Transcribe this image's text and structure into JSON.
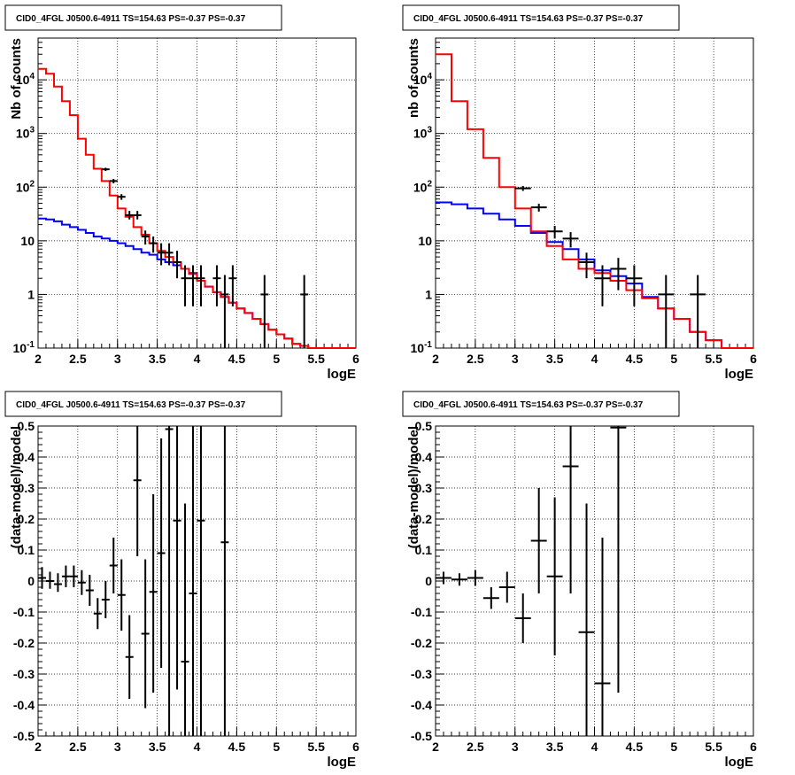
{
  "title": "CID0_4FGL J0500.6-4911 TS=154.63 PS=-0.37 PS=-0.37",
  "colors": {
    "model_total": "#ff0000",
    "model_bkg": "#0000ff",
    "data": "#000000"
  },
  "chart_data": [
    {
      "type": "line",
      "title": "CID0_4FGL J0500.6-4911 TS=154.63 PS=-0.37 PS=-0.37",
      "xlabel": "logE",
      "ylabel": "Nb of counts",
      "log_y": true,
      "xlim": [
        2,
        6
      ],
      "ylim": [
        0.1,
        60000
      ],
      "x_ticks": [
        "2",
        "2.5",
        "3",
        "3.5",
        "4",
        "4.5",
        "5",
        "5.5",
        "6"
      ],
      "y_ticks": [
        "10^-1",
        "1",
        "10",
        "10^2",
        "10^3",
        "10^4"
      ],
      "grid": true,
      "series": [
        {
          "edges": [
            2.0,
            2.1,
            2.2,
            2.3,
            2.4,
            2.5,
            2.6,
            2.7,
            2.8,
            2.9,
            3.0,
            3.1,
            3.2,
            3.3,
            3.4,
            3.5,
            3.6,
            3.7,
            3.8,
            3.9,
            4.0,
            4.1,
            4.2,
            4.3,
            4.4,
            4.5,
            4.6,
            4.7,
            4.8,
            4.9,
            5.0,
            5.1,
            5.2,
            5.3,
            5.4,
            5.5,
            5.6,
            5.7,
            5.8,
            5.9,
            6.0
          ],
          "values": [
            16000,
            13000,
            7500,
            4000,
            2200,
            800,
            400,
            220,
            130,
            70,
            40,
            28,
            18,
            13,
            9,
            6.5,
            5,
            4,
            3,
            2.4,
            1.8,
            1.4,
            1.1,
            0.9,
            0.7,
            0.55,
            0.45,
            0.35,
            0.28,
            0.22,
            0.18,
            0.15,
            0.12,
            0.11,
            0.1,
            0.1,
            0.1,
            0.1,
            0.1,
            0.1
          ]
        },
        {
          "edges": [
            2.0,
            2.1,
            2.2,
            2.3,
            2.4,
            2.5,
            2.6,
            2.7,
            2.8,
            2.9,
            3.0,
            3.1,
            3.2,
            3.3,
            3.4,
            3.5,
            3.6,
            3.7,
            3.8,
            3.9,
            4.0,
            4.1,
            4.2,
            4.3,
            4.4,
            4.5,
            4.6,
            4.7,
            4.8,
            4.9,
            5.0,
            5.1,
            5.2,
            5.3,
            5.4,
            5.5,
            5.6,
            5.7,
            5.8,
            5.9,
            6.0
          ],
          "values": [
            26,
            25,
            23,
            20,
            18,
            16,
            14,
            12,
            11,
            10,
            9,
            8,
            7,
            6,
            5.5,
            4.5,
            4,
            3.5,
            3,
            2.5,
            1.8,
            1.4,
            1.1,
            0.9,
            0.7,
            0.55,
            0.45,
            0.35,
            0.28,
            0.22,
            0.18,
            0.15,
            0.12,
            0.11,
            0.1,
            0.1,
            0.1,
            0.1,
            0.1,
            0.1
          ]
        }
      ],
      "points": [
        {
          "x": 2.85,
          "y": 215,
          "xerr": 0.05,
          "ylo": 200,
          "yhi": 230
        },
        {
          "x": 2.95,
          "y": 130,
          "xerr": 0.05,
          "ylo": 118,
          "yhi": 142
        },
        {
          "x": 3.05,
          "y": 66,
          "xerr": 0.05,
          "ylo": 58,
          "yhi": 74
        },
        {
          "x": 3.15,
          "y": 30,
          "xerr": 0.05,
          "ylo": 25,
          "yhi": 36
        },
        {
          "x": 3.25,
          "y": 30,
          "xerr": 0.05,
          "ylo": 25,
          "yhi": 36
        },
        {
          "x": 3.35,
          "y": 12,
          "xerr": 0.05,
          "ylo": 8.5,
          "yhi": 15.5
        },
        {
          "x": 3.45,
          "y": 9,
          "xerr": 0.05,
          "ylo": 6,
          "yhi": 12
        },
        {
          "x": 3.55,
          "y": 6,
          "xerr": 0.05,
          "ylo": 3.5,
          "yhi": 9
        },
        {
          "x": 3.65,
          "y": 6,
          "xerr": 0.05,
          "ylo": 3.5,
          "yhi": 9
        },
        {
          "x": 3.75,
          "y": 4,
          "xerr": 0.05,
          "ylo": 2,
          "yhi": 6.5
        },
        {
          "x": 3.85,
          "y": 2,
          "xerr": 0.05,
          "ylo": 0.6,
          "yhi": 3.5
        },
        {
          "x": 3.95,
          "y": 2,
          "xerr": 0.05,
          "ylo": 0.6,
          "yhi": 3.5
        },
        {
          "x": 4.05,
          "y": 2,
          "xerr": 0.05,
          "ylo": 0.6,
          "yhi": 3.5
        },
        {
          "x": 4.25,
          "y": 2,
          "xerr": 0.05,
          "ylo": 0.6,
          "yhi": 3.5
        },
        {
          "x": 4.35,
          "y": 1,
          "xerr": 0.05,
          "ylo": 0.1,
          "yhi": 2.3
        },
        {
          "x": 4.45,
          "y": 2,
          "xerr": 0.05,
          "ylo": 0.6,
          "yhi": 3.5
        },
        {
          "x": 4.85,
          "y": 1,
          "xerr": 0.05,
          "ylo": 0.1,
          "yhi": 2.3
        },
        {
          "x": 5.35,
          "y": 1,
          "xerr": 0.05,
          "ylo": 0.1,
          "yhi": 2.3
        }
      ]
    },
    {
      "type": "line",
      "title": "CID0_4FGL J0500.6-4911 TS=154.63 PS=-0.37 PS=-0.37",
      "xlabel": "logE",
      "ylabel": "nb of counts",
      "log_y": true,
      "xlim": [
        2,
        6
      ],
      "ylim": [
        0.1,
        60000
      ],
      "x_ticks": [
        "2",
        "2.5",
        "3",
        "3.5",
        "4",
        "4.5",
        "5",
        "5.5",
        "6"
      ],
      "y_ticks": [
        "10^-1",
        "1",
        "10",
        "10^2",
        "10^3",
        "10^4"
      ],
      "grid": true,
      "series": [
        {
          "edges": [
            2.0,
            2.2,
            2.4,
            2.6,
            2.8,
            3.0,
            3.2,
            3.4,
            3.6,
            3.8,
            4.0,
            4.2,
            4.4,
            4.6,
            4.8,
            5.0,
            5.2,
            5.4,
            5.6,
            5.8,
            6.0
          ],
          "values": [
            30000,
            4000,
            1200,
            350,
            100,
            40,
            15,
            8,
            4.5,
            3,
            2.5,
            1.8,
            1.2,
            0.85,
            0.55,
            0.35,
            0.2,
            0.14,
            0.1,
            0.1
          ]
        },
        {
          "edges": [
            2.0,
            2.2,
            2.4,
            2.6,
            2.8,
            3.0,
            3.2,
            3.4,
            3.6,
            3.8,
            4.0,
            4.2,
            4.4,
            4.6,
            4.8,
            5.0,
            5.2,
            5.4,
            5.6,
            5.8,
            6.0
          ],
          "values": [
            52,
            48,
            40,
            32,
            25,
            19,
            14,
            9.5,
            7,
            4.5,
            2.8,
            2.2,
            1.6,
            0.9,
            0.55,
            0.35,
            0.2,
            0.14,
            0.1,
            0.1
          ]
        }
      ],
      "points": [
        {
          "x": 3.1,
          "y": 95,
          "xerr": 0.1,
          "ylo": 85,
          "yhi": 105
        },
        {
          "x": 3.3,
          "y": 42,
          "xerr": 0.1,
          "ylo": 35,
          "yhi": 49
        },
        {
          "x": 3.5,
          "y": 15,
          "xerr": 0.1,
          "ylo": 11,
          "yhi": 19
        },
        {
          "x": 3.7,
          "y": 11,
          "xerr": 0.1,
          "ylo": 7.5,
          "yhi": 14.5
        },
        {
          "x": 3.9,
          "y": 4,
          "xerr": 0.1,
          "ylo": 2,
          "yhi": 6
        },
        {
          "x": 4.1,
          "y": 2,
          "xerr": 0.1,
          "ylo": 0.6,
          "yhi": 3.5
        },
        {
          "x": 4.3,
          "y": 3,
          "xerr": 0.1,
          "ylo": 1.2,
          "yhi": 4.8
        },
        {
          "x": 4.5,
          "y": 2,
          "xerr": 0.1,
          "ylo": 0.6,
          "yhi": 3.5
        },
        {
          "x": 4.9,
          "y": 1,
          "xerr": 0.1,
          "ylo": 0.1,
          "yhi": 2.3
        },
        {
          "x": 5.3,
          "y": 1,
          "xerr": 0.1,
          "ylo": 0.1,
          "yhi": 2.3
        }
      ]
    },
    {
      "type": "scatter",
      "title": "CID0_4FGL J0500.6-4911 TS=154.63 PS=-0.37 PS=-0.37",
      "xlabel": "logE",
      "ylabel": "(data-model)/model",
      "log_y": false,
      "xlim": [
        2,
        6
      ],
      "ylim": [
        -0.5,
        0.5
      ],
      "x_ticks": [
        "2",
        "2.5",
        "3",
        "3.5",
        "4",
        "4.5",
        "5",
        "5.5",
        "6"
      ],
      "y_ticks": [
        "-0.5",
        "-0.4",
        "-0.3",
        "-0.2",
        "-0.1",
        "0",
        "0.1",
        "0.2",
        "0.3",
        "0.4",
        "0.5"
      ],
      "grid": true,
      "series": [],
      "points": [
        {
          "x": 2.05,
          "y": 0.01,
          "xerr": 0.05,
          "ylo": -0.025,
          "yhi": 0.045
        },
        {
          "x": 2.15,
          "y": 0.0,
          "xerr": 0.05,
          "ylo": -0.025,
          "yhi": 0.03
        },
        {
          "x": 2.25,
          "y": -0.01,
          "xerr": 0.05,
          "ylo": -0.035,
          "yhi": 0.025
        },
        {
          "x": 2.35,
          "y": 0.015,
          "xerr": 0.05,
          "ylo": -0.02,
          "yhi": 0.05
        },
        {
          "x": 2.45,
          "y": 0.015,
          "xerr": 0.05,
          "ylo": -0.02,
          "yhi": 0.05
        },
        {
          "x": 2.55,
          "y": -0.005,
          "xerr": 0.05,
          "ylo": -0.045,
          "yhi": 0.035
        },
        {
          "x": 2.65,
          "y": -0.03,
          "xerr": 0.05,
          "ylo": -0.08,
          "yhi": 0.02
        },
        {
          "x": 2.75,
          "y": -0.105,
          "xerr": 0.05,
          "ylo": -0.155,
          "yhi": -0.055
        },
        {
          "x": 2.85,
          "y": -0.06,
          "xerr": 0.05,
          "ylo": -0.12,
          "yhi": 0.0
        },
        {
          "x": 2.95,
          "y": 0.05,
          "xerr": 0.05,
          "ylo": -0.04,
          "yhi": 0.14
        },
        {
          "x": 3.05,
          "y": -0.045,
          "xerr": 0.05,
          "ylo": -0.16,
          "yhi": 0.07
        },
        {
          "x": 3.15,
          "y": -0.245,
          "xerr": 0.05,
          "ylo": -0.38,
          "yhi": -0.11
        },
        {
          "x": 3.25,
          "y": 0.325,
          "xerr": 0.05,
          "ylo": 0.08,
          "yhi": 0.57
        },
        {
          "x": 3.35,
          "y": -0.17,
          "xerr": 0.05,
          "ylo": -0.41,
          "yhi": 0.07
        },
        {
          "x": 3.45,
          "y": -0.035,
          "xerr": 0.05,
          "ylo": -0.36,
          "yhi": 0.28
        },
        {
          "x": 3.55,
          "y": 0.09,
          "xerr": 0.05,
          "ylo": -0.28,
          "yhi": 0.46
        },
        {
          "x": 3.65,
          "y": 0.49,
          "xerr": 0.05,
          "ylo": -0.5,
          "yhi": 1.2
        },
        {
          "x": 3.75,
          "y": 0.195,
          "xerr": 0.05,
          "ylo": -0.35,
          "yhi": 0.74
        },
        {
          "x": 3.85,
          "y": -0.26,
          "xerr": 0.05,
          "ylo": -0.5,
          "yhi": 0.25
        },
        {
          "x": 3.95,
          "y": -0.04,
          "xerr": 0.05,
          "ylo": -0.5,
          "yhi": 0.65
        },
        {
          "x": 4.05,
          "y": 0.195,
          "xerr": 0.05,
          "ylo": -0.5,
          "yhi": 0.9
        },
        {
          "x": 4.35,
          "y": 0.125,
          "xerr": 0.05,
          "ylo": -0.5,
          "yhi": 0.9
        }
      ]
    },
    {
      "type": "scatter",
      "title": "CID0_4FGL J0500.6-4911 TS=154.63 PS=-0.37 PS=-0.37",
      "xlabel": "logE",
      "ylabel": "(data-model)/model",
      "log_y": false,
      "xlim": [
        2,
        6
      ],
      "ylim": [
        -0.5,
        0.5
      ],
      "x_ticks": [
        "2",
        "2.5",
        "3",
        "3.5",
        "4",
        "4.5",
        "5",
        "5.5",
        "6"
      ],
      "y_ticks": [
        "-0.5",
        "-0.4",
        "-0.3",
        "-0.2",
        "-0.1",
        "0",
        "0.1",
        "0.2",
        "0.3",
        "0.4",
        "0.5"
      ],
      "grid": true,
      "series": [],
      "points": [
        {
          "x": 2.1,
          "y": 0.01,
          "xerr": 0.1,
          "ylo": -0.01,
          "yhi": 0.03
        },
        {
          "x": 2.3,
          "y": 0.005,
          "xerr": 0.1,
          "ylo": -0.015,
          "yhi": 0.025
        },
        {
          "x": 2.5,
          "y": 0.01,
          "xerr": 0.1,
          "ylo": -0.015,
          "yhi": 0.035
        },
        {
          "x": 2.7,
          "y": -0.055,
          "xerr": 0.1,
          "ylo": -0.09,
          "yhi": -0.02
        },
        {
          "x": 2.9,
          "y": -0.02,
          "xerr": 0.1,
          "ylo": -0.07,
          "yhi": 0.03
        },
        {
          "x": 3.1,
          "y": -0.12,
          "xerr": 0.1,
          "ylo": -0.2,
          "yhi": -0.04
        },
        {
          "x": 3.3,
          "y": 0.13,
          "xerr": 0.1,
          "ylo": -0.04,
          "yhi": 0.3
        },
        {
          "x": 3.5,
          "y": 0.015,
          "xerr": 0.1,
          "ylo": -0.24,
          "yhi": 0.27
        },
        {
          "x": 3.7,
          "y": 0.37,
          "xerr": 0.1,
          "ylo": -0.04,
          "yhi": 0.78
        },
        {
          "x": 3.9,
          "y": -0.165,
          "xerr": 0.1,
          "ylo": -0.5,
          "yhi": 0.25
        },
        {
          "x": 4.1,
          "y": -0.33,
          "xerr": 0.1,
          "ylo": -0.5,
          "yhi": 0.14
        },
        {
          "x": 4.3,
          "y": 0.495,
          "xerr": 0.1,
          "ylo": -0.36,
          "yhi": 1.0
        }
      ]
    }
  ]
}
